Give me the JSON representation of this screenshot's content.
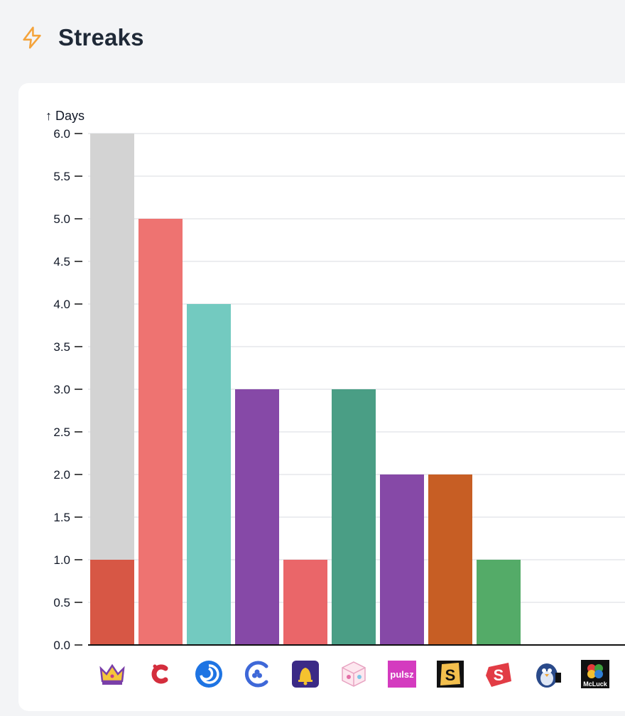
{
  "page": {
    "title": "Streaks"
  },
  "colors": {
    "accent": "#f4a33b",
    "gridline": "#e5e7eb",
    "axis": "#111111"
  },
  "chart_data": {
    "type": "bar",
    "title": "",
    "xlabel": "",
    "ylabel": "↑ Days",
    "ylim": [
      0,
      6
    ],
    "yticks": [
      "0.0",
      "0.5",
      "1.0",
      "1.5",
      "2.0",
      "2.5",
      "3.0",
      "3.5",
      "4.0",
      "4.5",
      "5.0",
      "5.5",
      "6.0"
    ],
    "grid": true,
    "categories": [
      "Crown Coins",
      "Chumba",
      "Stake",
      "Chanced",
      "Jackpota",
      "WOW Vegas",
      "Pulsz",
      "Sportzino",
      "SpinBlitz",
      "Hello Millions",
      "McLuck"
    ],
    "category_icons": [
      "crown-icon",
      "c-logo-icon",
      "swirl-icon",
      "club-c-icon",
      "bell-icon",
      "dice-icon",
      "pulsz-text-icon",
      "s-badge-icon",
      "s-splash-icon",
      "penguin-icon",
      "clover-icon"
    ],
    "icon_text": {
      "pulsz": "pulsz",
      "mcluck": "McLuck"
    },
    "series": [
      {
        "values": [
          1,
          5,
          4,
          3,
          1,
          3,
          2,
          2,
          1,
          0,
          0
        ],
        "colors": [
          "#d75745",
          "#ee7371",
          "#73cac0",
          "#8649a7",
          "#ea6669",
          "#4a9e85",
          "#8649a7",
          "#c75e24",
          "#54ab68",
          "#cccccc",
          "#cccccc"
        ]
      },
      {
        "values": [
          5,
          0,
          0,
          0,
          0,
          0,
          0,
          0,
          0,
          0,
          0
        ],
        "colors": [
          "#d3d3d3",
          "#d3d3d3",
          "#d3d3d3",
          "#d3d3d3",
          "#d3d3d3",
          "#d3d3d3",
          "#d3d3d3",
          "#d3d3d3",
          "#d3d3d3",
          "#d3d3d3",
          "#d3d3d3"
        ]
      }
    ]
  }
}
